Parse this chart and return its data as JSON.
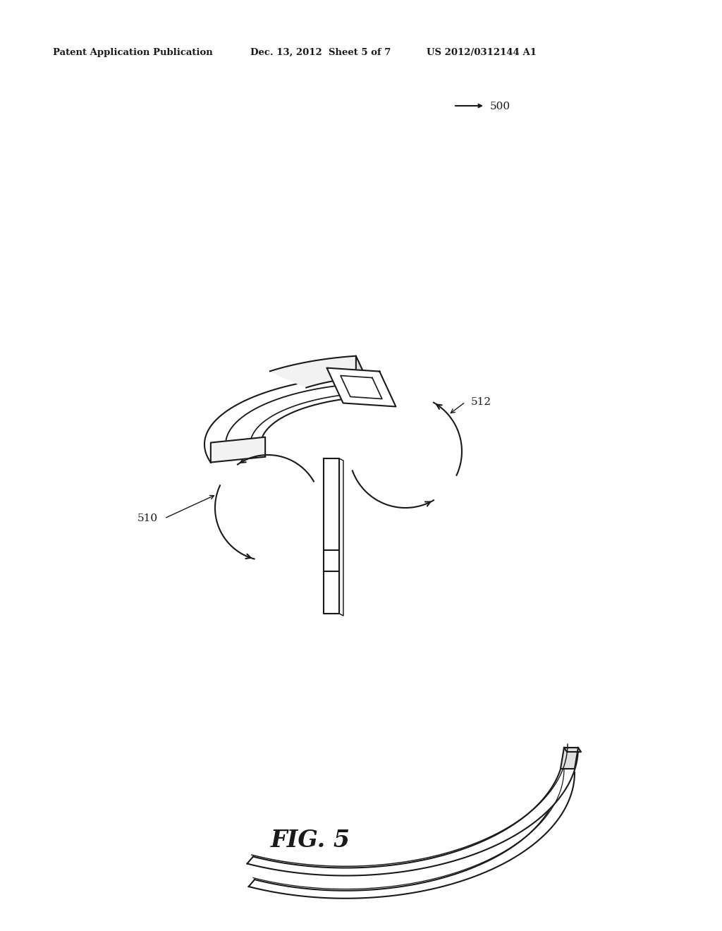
{
  "background_color": "#ffffff",
  "header_left": "Patent Application Publication",
  "header_mid": "Dec. 13, 2012  Sheet 5 of 7",
  "header_right": "US 2012/0312144 A1",
  "fig_label": "FIG. 5",
  "ref_500": "500",
  "ref_510": "510",
  "ref_512": "512",
  "line_color": "#1a1a1a",
  "fill_light": "#f2f2f2",
  "fill_white": "#ffffff",
  "fill_mid": "#e0e0e0"
}
